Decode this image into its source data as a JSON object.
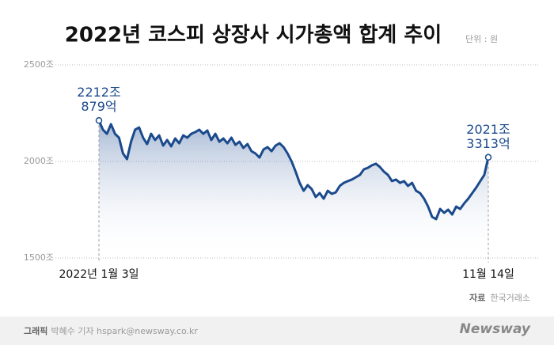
{
  "chart_data": {
    "type": "line",
    "title": "2022년 코스피 상장사 시가총액 합계 추이",
    "unit_label": "단위 : 원",
    "categories": [
      "2022년 1월 3일",
      null,
      null,
      null,
      null,
      null,
      null,
      null,
      null,
      null,
      null,
      null,
      null,
      null,
      null,
      null,
      null,
      null,
      null,
      null,
      null,
      null,
      null,
      null,
      null,
      null,
      null,
      null,
      null,
      null,
      null,
      null,
      null,
      null,
      null,
      null,
      null,
      null,
      null,
      null,
      null,
      null,
      null,
      null,
      null,
      null,
      null,
      null,
      null,
      null,
      null,
      null,
      null,
      null,
      null,
      null,
      null,
      null,
      null,
      null,
      null,
      null,
      null,
      null,
      null,
      null,
      null,
      null,
      null,
      null,
      null,
      null,
      null,
      null,
      null,
      null,
      null,
      null,
      null,
      null,
      null,
      null,
      null,
      null,
      null,
      null,
      null,
      null,
      null,
      null,
      null,
      null,
      null,
      null,
      null,
      null,
      null,
      "11월 14일"
    ],
    "values": [
      2212.0879,
      2164,
      2143,
      2193,
      2143,
      2123,
      2041,
      2012,
      2102,
      2164,
      2176,
      2123,
      2090,
      2143,
      2111,
      2135,
      2082,
      2111,
      2078,
      2119,
      2094,
      2135,
      2123,
      2143,
      2152,
      2164,
      2143,
      2160,
      2111,
      2143,
      2102,
      2119,
      2094,
      2123,
      2086,
      2102,
      2070,
      2090,
      2053,
      2041,
      2020,
      2062,
      2074,
      2053,
      2082,
      2094,
      2074,
      2041,
      2000,
      1947,
      1889,
      1848,
      1877,
      1857,
      1816,
      1836,
      1807,
      1848,
      1832,
      1840,
      1873,
      1889,
      1898,
      1906,
      1918,
      1930,
      1959,
      1967,
      1980,
      1988,
      1971,
      1947,
      1930,
      1898,
      1906,
      1889,
      1898,
      1873,
      1889,
      1848,
      1836,
      1807,
      1766,
      1713,
      1701,
      1754,
      1734,
      1750,
      1725,
      1766,
      1754,
      1783,
      1807,
      1836,
      1865,
      1898,
      1930,
      2021.3313
    ],
    "value_labels": [
      "2212조 879억",
      null,
      null,
      null,
      null,
      null,
      null,
      null,
      null,
      null,
      null,
      null,
      null,
      null,
      null,
      null,
      null,
      null,
      null,
      null,
      null,
      null,
      null,
      null,
      null,
      null,
      null,
      null,
      null,
      null,
      null,
      null,
      null,
      null,
      null,
      null,
      null,
      null,
      null,
      null,
      null,
      null,
      null,
      null,
      null,
      null,
      null,
      null,
      null,
      null,
      null,
      null,
      null,
      null,
      null,
      null,
      null,
      null,
      null,
      null,
      null,
      null,
      null,
      null,
      null,
      null,
      null,
      null,
      null,
      null,
      null,
      null,
      null,
      null,
      null,
      null,
      null,
      null,
      null,
      null,
      null,
      null,
      null,
      null,
      null,
      null,
      null,
      null,
      null,
      null,
      null,
      null,
      null,
      null,
      null,
      null,
      null,
      "2021조 3313억"
    ],
    "color": "#1b4a8c",
    "ylim": [
      1500,
      2500
    ],
    "yticks": [
      {
        "value": 1500,
        "label": "1500조"
      },
      {
        "value": 2000,
        "label": "2000조"
      },
      {
        "value": 2500,
        "label": "2500조"
      }
    ],
    "grid": true
  },
  "source": {
    "label": "자료",
    "text": "한국거래소"
  },
  "credit": {
    "label": "그래픽",
    "text": "박혜수 기자 hspark@newsway.co.kr"
  },
  "logo": "Newsway"
}
